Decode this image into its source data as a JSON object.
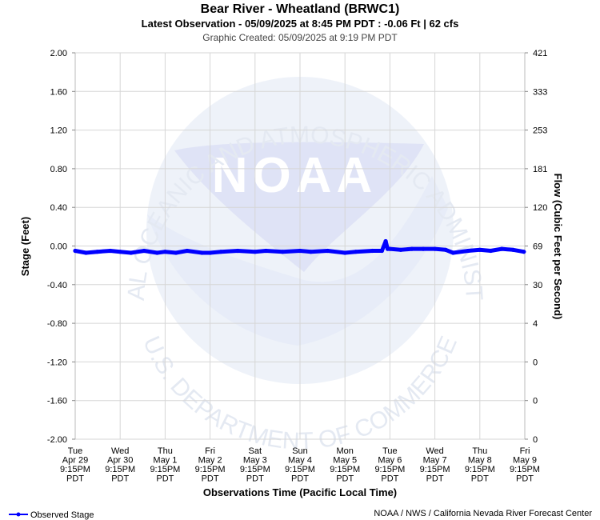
{
  "header": {
    "title": "Bear River - Wheatland (BRWC1)",
    "subtitle": "Latest Observation - 05/09/2025 at 8:45 PM PDT : -0.06 Ft | 62 cfs",
    "created": "Graphic Created: 05/09/2025 at 9:19 PM PDT"
  },
  "watermark": {
    "logo_text": "NOAA",
    "arc_top": "NATIONAL OCEANIC AND ATMOSPHERIC ADMINISTRATION",
    "arc_bottom": "U.S. DEPARTMENT OF COMMERCE"
  },
  "footer": {
    "legend_label": "Observed Stage",
    "credit": "NOAA / NWS / California Nevada River Forecast Center"
  },
  "colors": {
    "series": "#0000ff",
    "grid": "#d6d6d6",
    "watermark": "#eef2f9"
  },
  "chart_data": {
    "type": "line",
    "title": "Bear River - Wheatland (BRWC1)",
    "xlabel": "Observations Time (Pacific Local Time)",
    "ylabel": "Stage (Feet)",
    "y2label": "Flow (Cubic Feet per Second)",
    "ylim": [
      -2.0,
      2.0
    ],
    "grid": true,
    "legend": "bottom-left",
    "y_ticks": [
      "2.00",
      "1.60",
      "1.20",
      "0.80",
      "0.40",
      "0.00",
      "-0.40",
      "-0.80",
      "-1.20",
      "-1.60",
      "-2.00"
    ],
    "y2_ticks": [
      "421",
      "333",
      "253",
      "181",
      "120",
      "69",
      "30",
      "4",
      "0",
      "0",
      "0"
    ],
    "x_ticks": [
      [
        "Tue",
        "Apr 29",
        "9:15PM",
        "PDT"
      ],
      [
        "Wed",
        "Apr 30",
        "9:15PM",
        "PDT"
      ],
      [
        "Thu",
        "May 1",
        "9:15PM",
        "PDT"
      ],
      [
        "Fri",
        "May 2",
        "9:15PM",
        "PDT"
      ],
      [
        "Sat",
        "May 3",
        "9:15PM",
        "PDT"
      ],
      [
        "Sun",
        "May 4",
        "9:15PM",
        "PDT"
      ],
      [
        "Mon",
        "May 5",
        "9:15PM",
        "PDT"
      ],
      [
        "Tue",
        "May 6",
        "9:15PM",
        "PDT"
      ],
      [
        "Wed",
        "May 7",
        "9:15PM",
        "PDT"
      ],
      [
        "Thu",
        "May 8",
        "9:15PM",
        "PDT"
      ],
      [
        "Fri",
        "May 9",
        "9:15PM",
        "PDT"
      ]
    ],
    "x_range": [
      "2025-04-29 21:15",
      "2025-05-09 21:15"
    ],
    "series": [
      {
        "name": "Observed Stage",
        "x": [
          "2025-04-29 21:15",
          "2025-04-30 03:00",
          "2025-04-30 09:00",
          "2025-04-30 16:00",
          "2025-04-30 21:15",
          "2025-05-01 03:00",
          "2025-05-01 10:00",
          "2025-05-01 17:00",
          "2025-05-01 21:15",
          "2025-05-02 03:00",
          "2025-05-02 09:00",
          "2025-05-02 17:00",
          "2025-05-02 21:15",
          "2025-05-03 03:00",
          "2025-05-03 12:00",
          "2025-05-03 21:15",
          "2025-05-04 03:00",
          "2025-05-04 12:00",
          "2025-05-04 21:15",
          "2025-05-05 03:00",
          "2025-05-05 12:00",
          "2025-05-05 21:15",
          "2025-05-06 03:00",
          "2025-05-06 12:00",
          "2025-05-06 17:00",
          "2025-05-06 19:00",
          "2025-05-06 20:00",
          "2025-05-06 21:15",
          "2025-05-07 03:00",
          "2025-05-07 09:00",
          "2025-05-07 15:00",
          "2025-05-07 21:15",
          "2025-05-08 03:00",
          "2025-05-08 07:00",
          "2025-05-08 15:00",
          "2025-05-08 21:15",
          "2025-05-09 03:00",
          "2025-05-09 09:00",
          "2025-05-09 15:00",
          "2025-05-09 20:45"
        ],
        "y": [
          -0.05,
          -0.07,
          -0.06,
          -0.05,
          -0.06,
          -0.07,
          -0.05,
          -0.07,
          -0.06,
          -0.07,
          -0.05,
          -0.07,
          -0.07,
          -0.06,
          -0.05,
          -0.06,
          -0.05,
          -0.06,
          -0.05,
          -0.06,
          -0.05,
          -0.07,
          -0.06,
          -0.05,
          -0.05,
          0.05,
          -0.03,
          -0.03,
          -0.04,
          -0.03,
          -0.03,
          -0.03,
          -0.04,
          -0.07,
          -0.05,
          -0.04,
          -0.05,
          -0.03,
          -0.04,
          -0.06
        ]
      }
    ]
  }
}
